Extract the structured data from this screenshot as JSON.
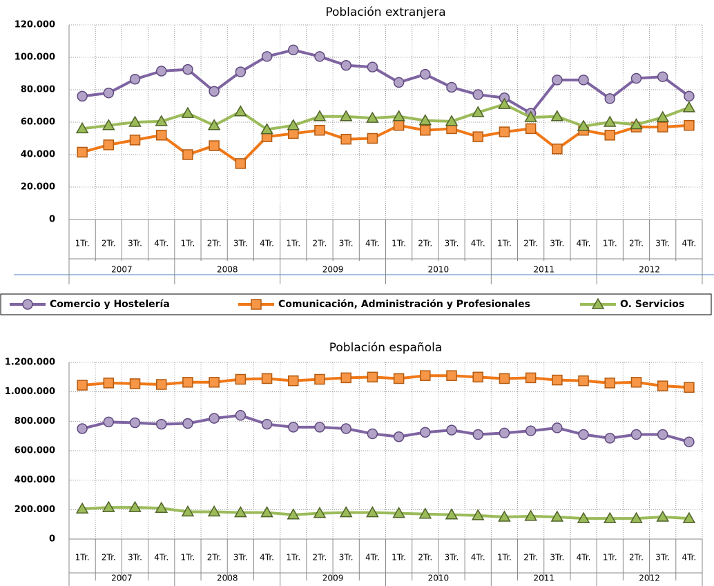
{
  "chart_data": [
    {
      "type": "line",
      "title": "Población extranjera",
      "categories": [
        "1Tr.",
        "2Tr.",
        "3Tr.",
        "4Tr.",
        "1Tr.",
        "2Tr.",
        "3Tr.",
        "4Tr.",
        "1Tr.",
        "2Tr.",
        "3Tr.",
        "4Tr.",
        "1Tr.",
        "2Tr.",
        "3Tr.",
        "4Tr.",
        "1Tr.",
        "2Tr.",
        "3Tr.",
        "4Tr.",
        "1Tr.",
        "2Tr.",
        "3Tr.",
        "4Tr."
      ],
      "category_groups": [
        "2007",
        "2008",
        "2009",
        "2010",
        "2011",
        "2012"
      ],
      "ylim": [
        0,
        120000
      ],
      "yticks": [
        0,
        {
          "value": 20000,
          "label": "20.000"
        },
        {
          "value": 40000,
          "label": "40.000"
        },
        {
          "value": 60000,
          "label": "60.000"
        },
        {
          "value": 80000,
          "label": "80.000"
        },
        {
          "value": 100000,
          "label": "100.000"
        },
        {
          "value": 120000,
          "label": "120.000"
        }
      ],
      "grid": true,
      "series": [
        {
          "name": "Comercio y Hostelería",
          "color": "#7f64a2",
          "values": [
            76000,
            78000,
            86500,
            91500,
            92500,
            79000,
            91000,
            100500,
            104500,
            100500,
            95000,
            94000,
            84500,
            89500,
            81500,
            77000,
            75000,
            65500,
            86000,
            86000,
            74500,
            87000,
            88000,
            76000
          ]
        },
        {
          "name": "Comunicación, Administración y Profesionales",
          "color": "#f07818",
          "values": [
            41500,
            46000,
            49000,
            52000,
            40000,
            45500,
            34500,
            51000,
            53000,
            55000,
            49500,
            50000,
            58000,
            55000,
            56000,
            51000,
            54000,
            56000,
            43500,
            55000,
            52000,
            57000,
            57000,
            58000
          ]
        },
        {
          "name": "O. Servicios",
          "color": "#9bbb59",
          "values": [
            56000,
            58000,
            60000,
            60500,
            65500,
            58000,
            66500,
            55500,
            58000,
            63500,
            63500,
            62500,
            63500,
            61000,
            60500,
            66000,
            71000,
            63000,
            63500,
            57500,
            60000,
            58500,
            63000,
            69000
          ]
        }
      ]
    },
    {
      "type": "line",
      "title": "Población española",
      "categories": [
        "1Tr.",
        "2Tr.",
        "3Tr.",
        "4Tr.",
        "1Tr.",
        "2Tr.",
        "3Tr.",
        "4Tr.",
        "1Tr.",
        "2Tr.",
        "3Tr.",
        "4Tr.",
        "1Tr.",
        "2Tr.",
        "3Tr.",
        "4Tr.",
        "1Tr.",
        "2Tr.",
        "3Tr.",
        "4Tr.",
        "1Tr.",
        "2Tr.",
        "3Tr.",
        "4Tr."
      ],
      "category_groups": [
        "2007",
        "2008",
        "2009",
        "2010",
        "2011",
        "2012"
      ],
      "ylim": [
        0,
        1200000
      ],
      "yticks": [
        0,
        {
          "value": 200000,
          "label": "200.000"
        },
        {
          "value": 400000,
          "label": "400.000"
        },
        {
          "value": 600000,
          "label": "600.000"
        },
        {
          "value": 800000,
          "label": "800.000"
        },
        {
          "value": 1000000,
          "label": "1.000.000"
        },
        {
          "value": 1200000,
          "label": "1.200.000"
        }
      ],
      "grid": true,
      "series": [
        {
          "color": "#7f64a2",
          "values": [
            750000,
            795000,
            790000,
            780000,
            785000,
            820000,
            840000,
            780000,
            760000,
            760000,
            750000,
            715000,
            695000,
            725000,
            740000,
            710000,
            720000,
            735000,
            755000,
            710000,
            685000,
            710000,
            710000,
            660000
          ]
        },
        {
          "color": "#f07818",
          "values": [
            1045000,
            1060000,
            1055000,
            1050000,
            1065000,
            1065000,
            1085000,
            1090000,
            1075000,
            1085000,
            1095000,
            1100000,
            1090000,
            1110000,
            1110000,
            1100000,
            1090000,
            1095000,
            1080000,
            1075000,
            1060000,
            1065000,
            1040000,
            1030000
          ]
        },
        {
          "color": "#9bbb59",
          "values": [
            205000,
            215000,
            215000,
            210000,
            185000,
            185000,
            180000,
            180000,
            165000,
            175000,
            180000,
            180000,
            175000,
            170000,
            165000,
            160000,
            150000,
            155000,
            150000,
            140000,
            140000,
            140000,
            150000,
            140000
          ]
        }
      ]
    }
  ]
}
